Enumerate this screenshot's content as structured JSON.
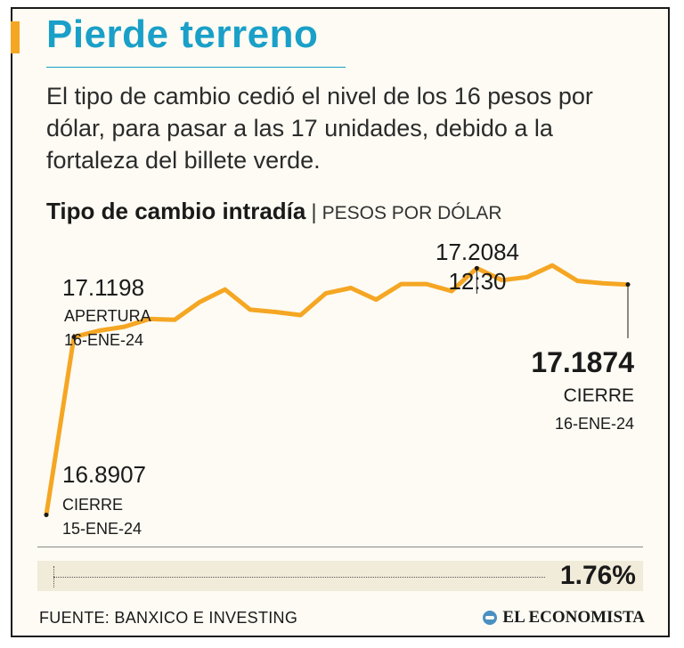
{
  "header": {
    "title": "Pierde terreno",
    "subtitle": "El tipo de cambio cedió el nivel de los 16 pesos por dólar, para pasar a las 17 unidades, debido a la fortaleza del billete verde."
  },
  "chart_heading": {
    "title": "Tipo de cambio intradía",
    "separator": "|",
    "unit": "PESOS POR DÓLAR"
  },
  "chart_data": {
    "type": "line",
    "title": "Tipo de cambio intradía",
    "ylabel": "PESOS POR DÓLAR",
    "ylim": [
      16.87,
      17.23
    ],
    "grid": false,
    "legend": "none",
    "series_color": "#f5a623",
    "values": [
      16.8907,
      17.1198,
      17.128,
      17.133,
      17.143,
      17.142,
      17.165,
      17.181,
      17.155,
      17.152,
      17.148,
      17.176,
      17.183,
      17.168,
      17.188,
      17.188,
      17.179,
      17.2084,
      17.193,
      17.197,
      17.212,
      17.192,
      17.189,
      17.1874
    ],
    "annotations": {
      "start": {
        "value": "16.8907",
        "label": "CIERRE",
        "date": "15-ENE-24"
      },
      "open": {
        "value": "17.1198",
        "label": "APERTURA",
        "date": "16-ENE-24"
      },
      "peak": {
        "value": "17.2084",
        "time": "12:30"
      },
      "close": {
        "value": "17.1874",
        "label": "CIERRE",
        "date": "16-ENE-24"
      }
    }
  },
  "change": {
    "value": "1.76%"
  },
  "footer": {
    "source": "FUENTE: BANXICO E INVESTING",
    "brand": "EL ECONOMISTA",
    "brand_icon": "el-economista-logo-icon"
  }
}
